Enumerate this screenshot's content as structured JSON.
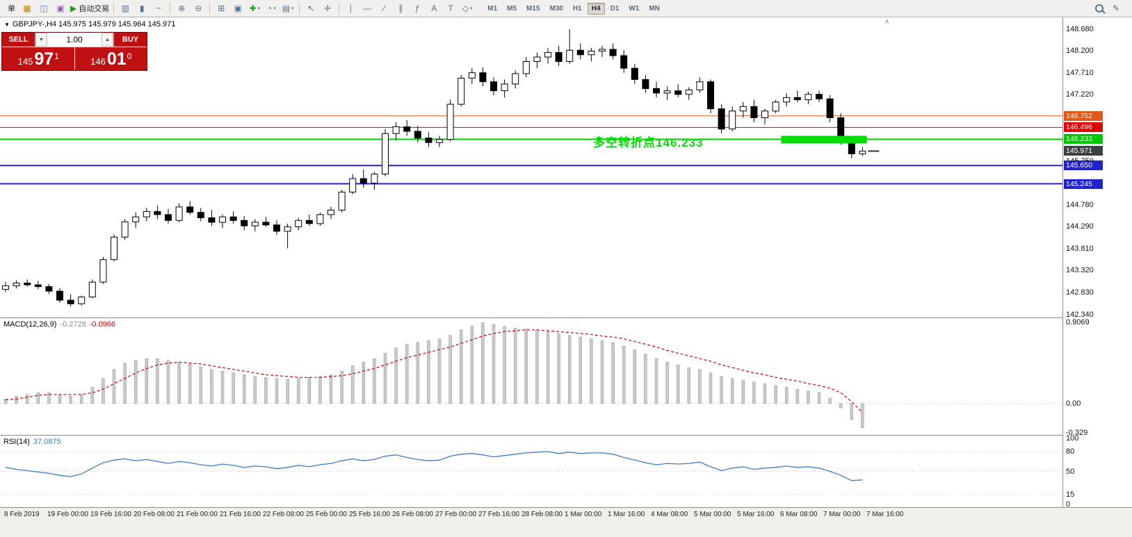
{
  "toolbar": {
    "left_items": [
      {
        "name": "new-order-button",
        "label": "单"
      },
      {
        "name": "charts-window-icon",
        "glyph": "▦",
        "color": "#b8860b"
      },
      {
        "name": "market-watch-icon",
        "glyph": "◫",
        "color": "#4a7ab5"
      },
      {
        "name": "terminal-icon",
        "glyph": "▣",
        "color": "#8a5fb0"
      },
      {
        "name": "autotrading-button",
        "glyph": "▶",
        "color": "#18a018",
        "label": "自动交易"
      },
      {
        "sep": true
      },
      {
        "name": "bar-chart-icon",
        "glyph": "▥"
      },
      {
        "name": "candlestick-chart-icon",
        "glyph": "▮"
      },
      {
        "name": "line-chart-icon",
        "glyph": "~"
      },
      {
        "sep": true
      },
      {
        "name": "zoom-in-icon",
        "glyph": "⊕"
      },
      {
        "name": "zoom-out-icon",
        "glyph": "⊖"
      },
      {
        "sep": true
      },
      {
        "name": "tile-windows-icon",
        "glyph": "⊞"
      },
      {
        "name": "auto-arrange-icon",
        "glyph": "▣"
      },
      {
        "name": "add-indicator-icon",
        "glyph": "✚",
        "color": "#18a018",
        "dropdown": true
      },
      {
        "name": "periods-icon",
        "glyph": "◔",
        "dropdown": true
      },
      {
        "name": "templates-icon",
        "glyph": "▤",
        "dropdown": true
      },
      {
        "sep": true
      },
      {
        "name": "cursor-icon",
        "glyph": "↖"
      },
      {
        "name": "crosshair-icon",
        "glyph": "✛"
      },
      {
        "sep": true
      },
      {
        "name": "vertical-line-icon",
        "glyph": "∣"
      },
      {
        "name": "horizontal-line-icon",
        "glyph": "—"
      },
      {
        "name": "trendline-icon",
        "glyph": "∕"
      },
      {
        "name": "channel-icon",
        "glyph": "∥"
      },
      {
        "name": "fibonacci-icon",
        "glyph": "ƒ"
      },
      {
        "name": "text-icon",
        "glyph": "A"
      },
      {
        "name": "text-label-icon",
        "glyph": "T"
      },
      {
        "name": "arrows-icon",
        "glyph": "◇",
        "dropdown": true
      }
    ],
    "timeframes": [
      {
        "label": "M1"
      },
      {
        "label": "M5"
      },
      {
        "label": "M15"
      },
      {
        "label": "M30"
      },
      {
        "label": "H1"
      },
      {
        "label": "H4",
        "active": true
      },
      {
        "label": "D1"
      },
      {
        "label": "W1"
      },
      {
        "label": "MN"
      }
    ],
    "right_items": [
      {
        "name": "search-icon",
        "type": "magnifier"
      },
      {
        "name": "edit-icon",
        "glyph": "✎"
      }
    ]
  },
  "symbol_bar": {
    "icon": "▼",
    "text": "GBPJPY-,H4 145.975 145.979 145.964 145.971"
  },
  "trade_panel": {
    "sell_label": "SELL",
    "buy_label": "BUY",
    "volume": "1.00",
    "spinner_down": "▼",
    "spinner_up": "▲",
    "sell_price": {
      "head": "145",
      "big": "97",
      "sup": "1"
    },
    "buy_price": {
      "head": "146",
      "big": "01",
      "sup": "0"
    },
    "panel_color": "#bf1111"
  },
  "annotation": {
    "text": "多空转折点146.233",
    "color": "#00dd00"
  },
  "scroll_marker": {
    "glyph": "∧"
  },
  "price_axis": {
    "ticks": [
      "148.680",
      "148.200",
      "147.710",
      "147.220",
      "145.750",
      "144.780",
      "144.290",
      "143.810",
      "143.320",
      "142.830",
      "142.340"
    ]
  },
  "time_axis": {
    "labels": [
      "8 Feb 2019",
      "19 Feb 00:00",
      "19 Feb 16:00",
      "20 Feb 08:00",
      "21 Feb 00:00",
      "21 Feb 16:00",
      "22 Feb 08:00",
      "25 Feb 00:00",
      "25 Feb 16:00",
      "26 Feb 08:00",
      "27 Feb 00:00",
      "27 Feb 16:00",
      "28 Feb 08:00",
      "1 Mar 00:00",
      "1 Mar 16:00",
      "4 Mar 08:00",
      "5 Mar 00:00",
      "5 Mar 16:00",
      "6 Mar 08:00",
      "7 Mar 00:00",
      "7 Mar 16:00"
    ]
  },
  "chart_data": [
    {
      "type": "candlestick",
      "title": "GBPJPY-,H4",
      "symbol": "GBPJPY",
      "timeframe": "H4",
      "quotes": {
        "open": "145.975",
        "high": "145.979",
        "low": "145.964",
        "close": "145.971"
      },
      "ylim": [
        142.26,
        148.94
      ],
      "x0": 8,
      "dx": 15.6,
      "body_width": 9,
      "bull_color": "#ffffff",
      "bear_color": "#000000",
      "wick_color": "#000000",
      "levels": [
        {
          "label": "146.752",
          "price": 146.752,
          "color": "#e0591b",
          "width": 1
        },
        {
          "label": "146.496",
          "price": 146.496,
          "color": "#dd0000",
          "width": 1
        },
        {
          "label": "146.233",
          "price": 146.233,
          "color": "#00c800",
          "width": 2
        },
        {
          "label": "145.650",
          "price": 145.65,
          "color": "#2323cc",
          "width": 2
        },
        {
          "label": "145.245",
          "price": 145.245,
          "color": "#2323cc",
          "width": 2
        }
      ],
      "current_price": {
        "label": "145.971",
        "value": 145.971,
        "badge_color": "#3c4043"
      },
      "highlight_rect": {
        "i0": 71.5,
        "i1": 79.4,
        "p_top": 146.31,
        "p_bottom": 146.14,
        "color": "#00dd00"
      },
      "ohlc": [
        [
          142.9,
          143.06,
          142.84,
          142.98
        ],
        [
          142.98,
          143.1,
          142.92,
          143.04
        ],
        [
          143.04,
          143.12,
          142.96,
          143.0
        ],
        [
          143.0,
          143.09,
          142.9,
          142.96
        ],
        [
          142.96,
          143.02,
          142.8,
          142.86
        ],
        [
          142.86,
          142.93,
          142.6,
          142.66
        ],
        [
          142.66,
          142.79,
          142.52,
          142.58
        ],
        [
          142.58,
          142.76,
          142.54,
          142.73
        ],
        [
          142.73,
          143.12,
          142.7,
          143.06
        ],
        [
          143.06,
          143.62,
          143.02,
          143.56
        ],
        [
          143.56,
          144.12,
          143.52,
          144.06
        ],
        [
          144.06,
          144.46,
          144.0,
          144.4
        ],
        [
          144.4,
          144.61,
          144.26,
          144.51
        ],
        [
          144.51,
          144.71,
          144.41,
          144.63
        ],
        [
          144.63,
          144.76,
          144.46,
          144.56
        ],
        [
          144.56,
          144.69,
          144.36,
          144.43
        ],
        [
          144.43,
          144.81,
          144.39,
          144.73
        ],
        [
          144.73,
          144.86,
          144.56,
          144.61
        ],
        [
          144.61,
          144.71,
          144.41,
          144.49
        ],
        [
          144.49,
          144.66,
          144.31,
          144.39
        ],
        [
          144.39,
          144.56,
          144.26,
          144.51
        ],
        [
          144.51,
          144.63,
          144.36,
          144.43
        ],
        [
          144.43,
          144.53,
          144.21,
          144.31
        ],
        [
          144.31,
          144.46,
          144.19,
          144.39
        ],
        [
          144.39,
          144.51,
          144.29,
          144.33
        ],
        [
          144.33,
          144.43,
          144.11,
          144.19
        ],
        [
          144.19,
          144.36,
          143.81,
          144.29
        ],
        [
          144.29,
          144.49,
          144.21,
          144.43
        ],
        [
          144.43,
          144.56,
          144.31,
          144.36
        ],
        [
          144.36,
          144.61,
          144.31,
          144.56
        ],
        [
          144.56,
          144.73,
          144.46,
          144.66
        ],
        [
          144.66,
          145.11,
          144.61,
          145.06
        ],
        [
          145.06,
          145.46,
          145.01,
          145.36
        ],
        [
          145.36,
          145.56,
          145.16,
          145.26
        ],
        [
          145.26,
          145.51,
          145.11,
          145.46
        ],
        [
          145.46,
          146.46,
          145.41,
          146.36
        ],
        [
          146.36,
          146.61,
          146.21,
          146.51
        ],
        [
          146.51,
          146.66,
          146.31,
          146.41
        ],
        [
          146.41,
          146.53,
          146.16,
          146.26
        ],
        [
          146.26,
          146.39,
          146.06,
          146.16
        ],
        [
          146.16,
          146.31,
          146.06,
          146.23
        ],
        [
          146.23,
          147.11,
          146.19,
          147.01
        ],
        [
          147.01,
          147.66,
          146.96,
          147.59
        ],
        [
          147.59,
          147.81,
          147.46,
          147.71
        ],
        [
          147.71,
          147.83,
          147.41,
          147.51
        ],
        [
          147.51,
          147.61,
          147.21,
          147.31
        ],
        [
          147.31,
          147.56,
          147.16,
          147.46
        ],
        [
          147.46,
          147.76,
          147.36,
          147.69
        ],
        [
          147.69,
          148.06,
          147.61,
          147.96
        ],
        [
          147.96,
          148.16,
          147.81,
          148.06
        ],
        [
          148.06,
          148.26,
          147.91,
          148.16
        ],
        [
          148.16,
          148.31,
          147.86,
          147.96
        ],
        [
          147.96,
          148.68,
          147.91,
          148.21
        ],
        [
          148.21,
          148.36,
          148.01,
          148.11
        ],
        [
          148.11,
          148.26,
          147.96,
          148.19
        ],
        [
          148.19,
          148.31,
          148.06,
          148.23
        ],
        [
          148.23,
          148.36,
          148.01,
          148.09
        ],
        [
          148.09,
          148.21,
          147.71,
          147.81
        ],
        [
          147.81,
          147.91,
          147.46,
          147.56
        ],
        [
          147.56,
          147.66,
          147.26,
          147.36
        ],
        [
          147.36,
          147.51,
          147.16,
          147.26
        ],
        [
          147.26,
          147.41,
          147.11,
          147.31
        ],
        [
          147.31,
          147.46,
          147.16,
          147.23
        ],
        [
          147.23,
          147.39,
          147.11,
          147.33
        ],
        [
          147.33,
          147.61,
          147.26,
          147.51
        ],
        [
          147.51,
          147.56,
          146.81,
          146.91
        ],
        [
          146.91,
          147.01,
          146.36,
          146.46
        ],
        [
          146.46,
          146.96,
          146.41,
          146.86
        ],
        [
          146.86,
          147.06,
          146.71,
          146.96
        ],
        [
          146.96,
          147.11,
          146.61,
          146.71
        ],
        [
          146.71,
          146.91,
          146.56,
          146.86
        ],
        [
          146.86,
          147.11,
          146.81,
          147.06
        ],
        [
          147.06,
          147.26,
          146.96,
          147.16
        ],
        [
          147.16,
          147.31,
          147.06,
          147.11
        ],
        [
          147.11,
          147.29,
          147.01,
          147.23
        ],
        [
          147.23,
          147.31,
          147.06,
          147.13
        ],
        [
          147.13,
          147.21,
          146.61,
          146.71
        ],
        [
          146.71,
          146.81,
          146.11,
          146.21
        ],
        [
          146.21,
          146.31,
          145.81,
          145.91
        ],
        [
          145.91,
          146.06,
          145.86,
          145.97
        ]
      ]
    },
    {
      "type": "bar",
      "name": "MACD",
      "label": "MACD(12,26,9)",
      "value1": "-0.2728",
      "value2": "-0.0966",
      "ylim": [
        -0.35,
        0.95
      ],
      "hist_color": "#c9c9c9",
      "hist_edge": "#9a9a9a",
      "signal_color": "#cc0000",
      "ticks": [
        {
          "label": "0.9069",
          "value": 0.9069
        },
        {
          "label": "0.00",
          "value": 0
        },
        {
          "label": "-0.329",
          "value": -0.329
        }
      ],
      "hist": [
        0.05,
        0.08,
        0.1,
        0.12,
        0.12,
        0.1,
        0.08,
        0.1,
        0.18,
        0.28,
        0.38,
        0.45,
        0.48,
        0.5,
        0.5,
        0.48,
        0.46,
        0.44,
        0.41,
        0.38,
        0.36,
        0.34,
        0.32,
        0.3,
        0.29,
        0.28,
        0.27,
        0.28,
        0.29,
        0.3,
        0.32,
        0.36,
        0.42,
        0.46,
        0.5,
        0.56,
        0.62,
        0.66,
        0.68,
        0.7,
        0.72,
        0.76,
        0.82,
        0.86,
        0.9,
        0.88,
        0.86,
        0.84,
        0.83,
        0.82,
        0.8,
        0.78,
        0.76,
        0.74,
        0.72,
        0.7,
        0.68,
        0.64,
        0.6,
        0.55,
        0.5,
        0.46,
        0.43,
        0.4,
        0.38,
        0.34,
        0.3,
        0.28,
        0.26,
        0.24,
        0.22,
        0.2,
        0.18,
        0.16,
        0.14,
        0.12,
        0.06,
        -0.05,
        -0.18,
        -0.27
      ],
      "signal": [
        0.04,
        0.05,
        0.07,
        0.09,
        0.1,
        0.1,
        0.1,
        0.1,
        0.12,
        0.16,
        0.22,
        0.28,
        0.34,
        0.39,
        0.43,
        0.45,
        0.46,
        0.45,
        0.44,
        0.42,
        0.4,
        0.38,
        0.36,
        0.34,
        0.32,
        0.31,
        0.3,
        0.29,
        0.29,
        0.29,
        0.3,
        0.31,
        0.33,
        0.36,
        0.39,
        0.43,
        0.47,
        0.51,
        0.54,
        0.57,
        0.6,
        0.63,
        0.67,
        0.71,
        0.75,
        0.78,
        0.8,
        0.81,
        0.82,
        0.82,
        0.81,
        0.8,
        0.79,
        0.78,
        0.77,
        0.75,
        0.74,
        0.72,
        0.69,
        0.66,
        0.63,
        0.59,
        0.56,
        0.53,
        0.5,
        0.47,
        0.43,
        0.4,
        0.37,
        0.34,
        0.32,
        0.29,
        0.27,
        0.25,
        0.22,
        0.2,
        0.17,
        0.12,
        0.02,
        -0.1
      ]
    },
    {
      "type": "line",
      "name": "RSI",
      "label": "RSI(14)",
      "value": "37.0875",
      "ylim": [
        0,
        100
      ],
      "color": "#3e7bc0",
      "levels": [
        80,
        50,
        15
      ],
      "ticks": [
        {
          "label": "100",
          "value": 100
        },
        {
          "label": "80",
          "value": 80
        },
        {
          "label": "50",
          "value": 50
        },
        {
          "label": "15",
          "value": 15
        },
        {
          "label": "0",
          "value": 0
        }
      ],
      "values": [
        56,
        53,
        51,
        49,
        47,
        44,
        42,
        46,
        55,
        63,
        67,
        69,
        66,
        68,
        65,
        62,
        65,
        63,
        60,
        58,
        61,
        59,
        56,
        58,
        57,
        54,
        56,
        59,
        57,
        60,
        62,
        66,
        69,
        66,
        68,
        73,
        75,
        71,
        68,
        66,
        67,
        73,
        76,
        77,
        75,
        72,
        74,
        76,
        78,
        79,
        80,
        77,
        79,
        77,
        78,
        78,
        76,
        71,
        67,
        63,
        60,
        62,
        61,
        62,
        64,
        57,
        51,
        55,
        57,
        53,
        55,
        56,
        58,
        56,
        57,
        55,
        50,
        44,
        36,
        37.09
      ]
    }
  ]
}
